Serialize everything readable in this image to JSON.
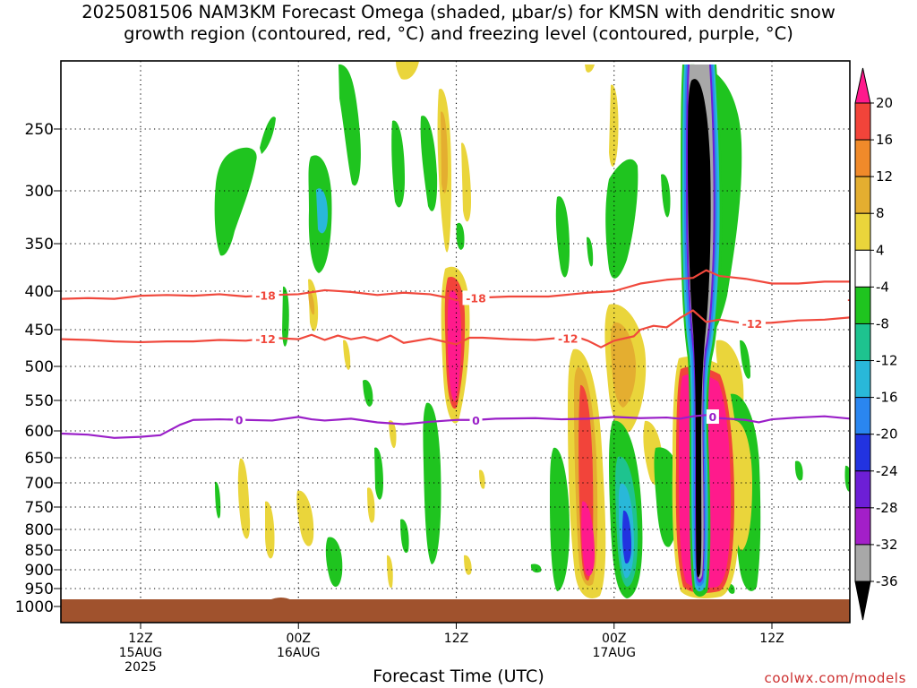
{
  "title_line1": "2025081506 NAM3KM Forecast Omega (shaded, μbar/s) for KMSN with dendritic snow",
  "title_line2": "growth region (contoured, red, °C) and freezing level (contoured, purple, °C)",
  "credit": "coolwx.com/models",
  "chart_data": {
    "type": "heatmap",
    "xlabel": "Forecast Time (UTC)",
    "ylabel": "",
    "y_axis": {
      "quantity": "pressure (hPa)",
      "inverted": true,
      "range": [
        220,
        1000
      ],
      "ticks": [
        250,
        300,
        350,
        400,
        450,
        500,
        550,
        600,
        650,
        700,
        750,
        800,
        850,
        900,
        950,
        1000
      ]
    },
    "x_axis": {
      "quantity": "forecast hour",
      "range": [
        0,
        60
      ],
      "ticks": [
        {
          "hour": 6,
          "lines": [
            "12Z",
            "15AUG",
            "2025"
          ]
        },
        {
          "hour": 18,
          "lines": [
            "00Z",
            "16AUG"
          ]
        },
        {
          "hour": 30,
          "lines": [
            "12Z"
          ]
        },
        {
          "hour": 42,
          "lines": [
            "00Z",
            "17AUG"
          ]
        },
        {
          "hour": 54,
          "lines": [
            "12Z"
          ]
        }
      ]
    },
    "grid": true,
    "colorbar": {
      "units": "μbar/s",
      "labels": [
        "20",
        "16",
        "12",
        "8",
        "4",
        "-4",
        "-8",
        "-12",
        "-16",
        "-20",
        "-24",
        "-28",
        "-32",
        "-36"
      ],
      "levels": [
        {
          "color": "#ff1a8c"
        },
        {
          "color": "#f2443a"
        },
        {
          "color": "#f08a2a"
        },
        {
          "color": "#e4ae30"
        },
        {
          "color": "#ead53b"
        },
        {
          "color": "#ffffff"
        },
        {
          "color": "#1fc41f"
        },
        {
          "color": "#1ec38f"
        },
        {
          "color": "#29b8d9"
        },
        {
          "color": "#2a86f0"
        },
        {
          "color": "#2233e0"
        },
        {
          "color": "#6d1fd6"
        },
        {
          "color": "#a31fc8"
        },
        {
          "color": "#a8a8a8"
        },
        {
          "color": "#000000"
        }
      ]
    },
    "contours": [
      {
        "label": "-18",
        "color": "#f0483c",
        "label_hours": [
          15.5,
          31.5,
          60.5
        ],
        "points": [
          [
            0,
            410
          ],
          [
            2,
            409
          ],
          [
            4,
            410
          ],
          [
            6,
            406
          ],
          [
            8,
            405
          ],
          [
            10,
            406
          ],
          [
            12,
            404
          ],
          [
            14,
            407
          ],
          [
            16,
            405
          ],
          [
            18,
            404
          ],
          [
            20,
            399
          ],
          [
            22,
            401
          ],
          [
            24,
            405
          ],
          [
            26,
            402
          ],
          [
            28,
            404
          ],
          [
            29.5,
            409
          ],
          [
            30,
            412
          ],
          [
            31,
            409
          ],
          [
            34,
            407
          ],
          [
            37,
            407
          ],
          [
            40,
            402
          ],
          [
            42,
            400
          ],
          [
            44,
            392
          ],
          [
            46,
            388
          ],
          [
            48,
            386
          ],
          [
            49,
            378
          ],
          [
            50,
            384
          ],
          [
            52,
            387
          ],
          [
            54,
            392
          ],
          [
            56,
            392
          ],
          [
            58,
            390
          ],
          [
            60,
            390
          ]
        ]
      },
      {
        "label": "-12",
        "color": "#f0483c",
        "label_hours": [
          15.5,
          38.5,
          52.5
        ],
        "points": [
          [
            0,
            463
          ],
          [
            2,
            464
          ],
          [
            4,
            466
          ],
          [
            6,
            467
          ],
          [
            8,
            466
          ],
          [
            10,
            466
          ],
          [
            12,
            464
          ],
          [
            14,
            465
          ],
          [
            16,
            461
          ],
          [
            17,
            462
          ],
          [
            18,
            463
          ],
          [
            19,
            457
          ],
          [
            20,
            464
          ],
          [
            21,
            458
          ],
          [
            22,
            463
          ],
          [
            23,
            460
          ],
          [
            24,
            465
          ],
          [
            25,
            458
          ],
          [
            26,
            468
          ],
          [
            28,
            462
          ],
          [
            29.5,
            468
          ],
          [
            30,
            470
          ],
          [
            31,
            461
          ],
          [
            32,
            461
          ],
          [
            34,
            463
          ],
          [
            36,
            464
          ],
          [
            38,
            461
          ],
          [
            39.5,
            462
          ],
          [
            40,
            465
          ],
          [
            41,
            474
          ],
          [
            42,
            465
          ],
          [
            43.5,
            459
          ],
          [
            44,
            450
          ],
          [
            45,
            445
          ],
          [
            46,
            447
          ],
          [
            47,
            435
          ],
          [
            48,
            425
          ],
          [
            49,
            440
          ],
          [
            50,
            437
          ],
          [
            52,
            442
          ],
          [
            54,
            441
          ],
          [
            56,
            438
          ],
          [
            58,
            437
          ],
          [
            60,
            434
          ]
        ]
      },
      {
        "label": "0",
        "color": "#9a1fc8",
        "label_hours": [
          13.5,
          31.5,
          49.5
        ],
        "points": [
          [
            0,
            605
          ],
          [
            2,
            607
          ],
          [
            4,
            613
          ],
          [
            6,
            611
          ],
          [
            7.5,
            608
          ],
          [
            9,
            590
          ],
          [
            10,
            582
          ],
          [
            12,
            581
          ],
          [
            14,
            582
          ],
          [
            16,
            583
          ],
          [
            18,
            577
          ],
          [
            19,
            581
          ],
          [
            20,
            583
          ],
          [
            22,
            580
          ],
          [
            24,
            586
          ],
          [
            26,
            589
          ],
          [
            28,
            585
          ],
          [
            30,
            582
          ],
          [
            31.5,
            582
          ],
          [
            33,
            580
          ],
          [
            36,
            579
          ],
          [
            38,
            581
          ],
          [
            40,
            580
          ],
          [
            42,
            577
          ],
          [
            44,
            579
          ],
          [
            46,
            578
          ],
          [
            47,
            580
          ],
          [
            48,
            576
          ],
          [
            49,
            574
          ],
          [
            50,
            579
          ],
          [
            52,
            582
          ],
          [
            53,
            586
          ],
          [
            54,
            581
          ],
          [
            56,
            578
          ],
          [
            58,
            576
          ],
          [
            60,
            580
          ]
        ]
      }
    ]
  }
}
